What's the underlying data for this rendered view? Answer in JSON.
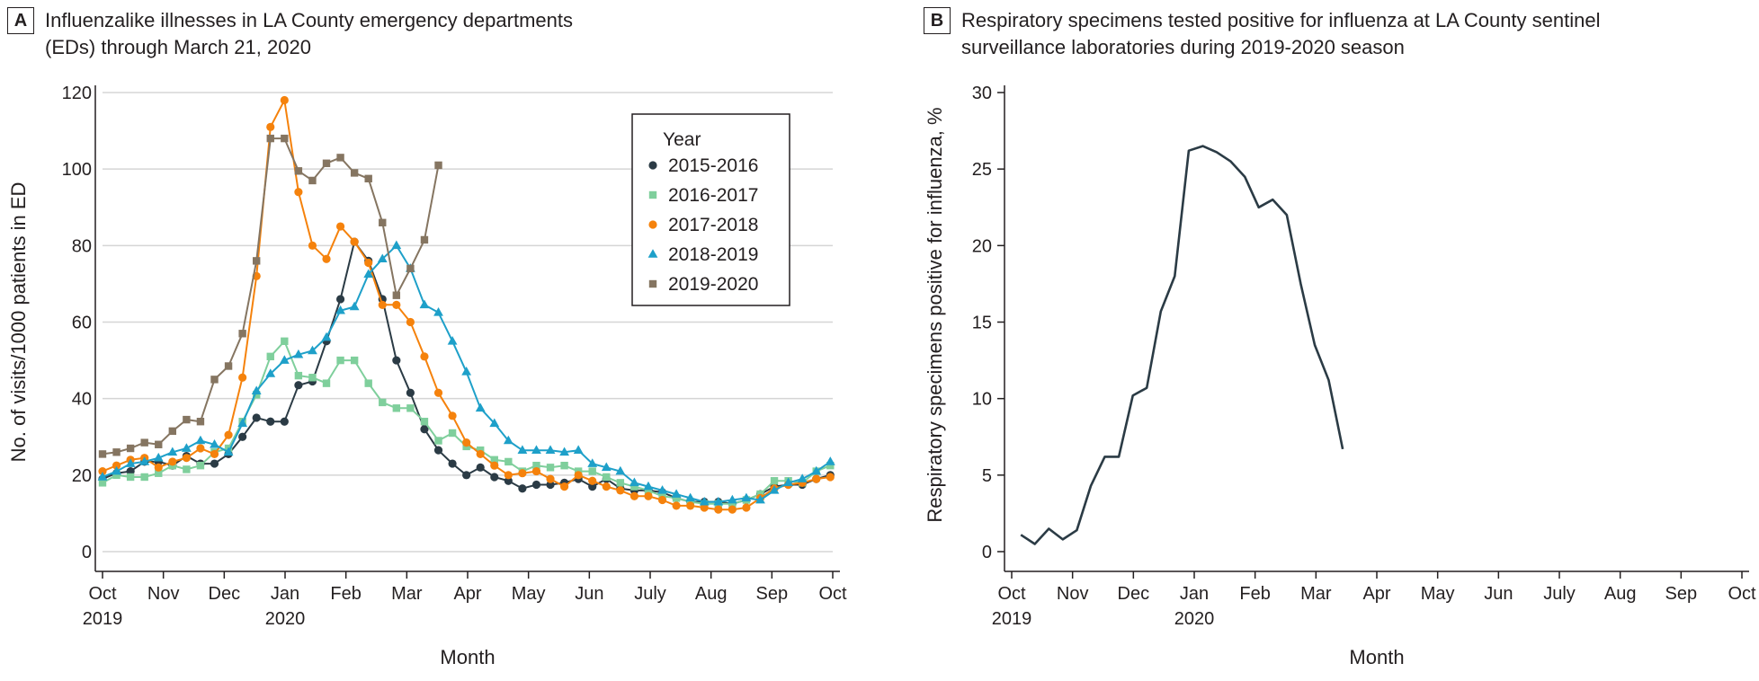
{
  "colors": {
    "2015-2016": "#2b3b45",
    "2016-2017": "#7fcf9c",
    "2017-2018": "#f5820c",
    "2018-2019": "#1ea0c9",
    "2019-2020": "#857561",
    "panelB_line": "#2b3b45",
    "grid": "#d5d5d5",
    "axis": "#231f20"
  },
  "panels": [
    {
      "letter": "A",
      "title_lines": [
        "Influenzalike illnesses in LA County emergency departments",
        "(EDs) through March 21, 2020"
      ]
    },
    {
      "letter": "B",
      "title_lines": [
        "Respiratory specimens tested positive for influenza at LA County sentinel",
        "surveillance laboratories during 2019-2020 season"
      ]
    }
  ],
  "chart_data": [
    {
      "type": "line",
      "title": "Influenzalike illnesses in LA County emergency departments (EDs) through March 21, 2020",
      "xlabel": "Month",
      "ylabel": "No. of visits/1000 patients in ED",
      "ylim": [
        0,
        120
      ],
      "yticks": [
        "0",
        "20",
        "40",
        "60",
        "80",
        "100",
        "120"
      ],
      "xticks": [
        "Oct",
        "Nov",
        "Dec",
        "Jan",
        "Feb",
        "Mar",
        "Apr",
        "May",
        "Jun",
        "July",
        "Aug",
        "Sep",
        "Oct"
      ],
      "xtick_years": {
        "0": "2019",
        "3": "2020"
      },
      "x_unit": "month index (0 = Oct 2019, 12 = Oct 2020)",
      "grid": "horizontal",
      "legend_title": "Year",
      "legend_position": "top-right",
      "series": [
        {
          "name": "2015-2016",
          "marker": "circle",
          "x": [
            0,
            0.23,
            0.46,
            0.69,
            0.92,
            1.15,
            1.38,
            1.61,
            1.84,
            2.07,
            2.3,
            2.53,
            2.76,
            2.99,
            3.22,
            3.45,
            3.68,
            3.91,
            4.14,
            4.37,
            4.6,
            4.83,
            5.06,
            5.29,
            5.52,
            5.75,
            5.98,
            6.21,
            6.44,
            6.67,
            6.9,
            7.13,
            7.36,
            7.59,
            7.82,
            8.05,
            8.28,
            8.51,
            8.74,
            8.97,
            9.2,
            9.43,
            9.66,
            9.89,
            10.12,
            10.35,
            10.58,
            10.81,
            11.04,
            11.27,
            11.5,
            11.73,
            11.96
          ],
          "y": [
            19,
            20.5,
            21,
            23.5,
            23.5,
            22.5,
            25,
            23,
            23,
            25.5,
            30,
            35,
            34,
            34,
            43.5,
            44.5,
            55,
            66,
            81,
            76,
            66,
            50,
            41.5,
            32,
            26.5,
            23,
            20,
            22,
            19.5,
            18.5,
            16.5,
            17.5,
            17.5,
            18,
            19,
            17,
            19,
            16.5,
            16,
            16,
            15.5,
            14,
            13,
            13,
            13,
            12.5,
            13.5,
            15,
            17,
            17.5,
            17.5,
            19,
            20
          ]
        },
        {
          "name": "2016-2017",
          "marker": "square",
          "x": [
            0,
            0.23,
            0.46,
            0.69,
            0.92,
            1.15,
            1.38,
            1.61,
            1.84,
            2.07,
            2.3,
            2.53,
            2.76,
            2.99,
            3.22,
            3.45,
            3.68,
            3.91,
            4.14,
            4.37,
            4.6,
            4.83,
            5.06,
            5.29,
            5.52,
            5.75,
            5.98,
            6.21,
            6.44,
            6.67,
            6.9,
            7.13,
            7.36,
            7.59,
            7.82,
            8.05,
            8.28,
            8.51,
            8.74,
            8.97,
            9.2,
            9.43,
            9.66,
            9.89,
            10.12,
            10.35,
            10.58,
            10.81,
            11.04,
            11.27,
            11.5,
            11.73,
            11.96
          ],
          "y": [
            18,
            20,
            19.5,
            19.5,
            20.5,
            22.5,
            21.5,
            22.5,
            26,
            27,
            34,
            41,
            51,
            55,
            46,
            45.5,
            44,
            50,
            50,
            44,
            39,
            37.5,
            37.5,
            34,
            29,
            31,
            27.5,
            26.5,
            24,
            23.5,
            21,
            22.5,
            22,
            22.5,
            21,
            21,
            19.5,
            18,
            17,
            16,
            14.5,
            14,
            13,
            12.5,
            12.5,
            12.5,
            13.5,
            15,
            18.5,
            18.5,
            18,
            21,
            22.5
          ]
        },
        {
          "name": "2017-2018",
          "marker": "circle",
          "x": [
            0,
            0.23,
            0.46,
            0.69,
            0.92,
            1.15,
            1.38,
            1.61,
            1.84,
            2.07,
            2.3,
            2.53,
            2.76,
            2.99,
            3.22,
            3.45,
            3.68,
            3.91,
            4.14,
            4.37,
            4.6,
            4.83,
            5.06,
            5.29,
            5.52,
            5.75,
            5.98,
            6.21,
            6.44,
            6.67,
            6.9,
            7.13,
            7.36,
            7.59,
            7.82,
            8.05,
            8.28,
            8.51,
            8.74,
            8.97,
            9.2,
            9.43,
            9.66,
            9.89,
            10.12,
            10.35,
            10.58,
            10.81,
            11.04,
            11.27,
            11.5,
            11.73,
            11.96
          ],
          "y": [
            21,
            22.5,
            24,
            24.5,
            22,
            23.5,
            24.5,
            27,
            25.5,
            30.5,
            45.5,
            72,
            111,
            118,
            94,
            80,
            76.5,
            85,
            81,
            75.5,
            64.5,
            64.5,
            60,
            51,
            41.5,
            35.5,
            28.5,
            25.5,
            22.5,
            20,
            20.5,
            21,
            19,
            17,
            20,
            18.5,
            17,
            16,
            14.5,
            14.5,
            13.5,
            12,
            12,
            11.5,
            11,
            11,
            11.5,
            14,
            16.5,
            17.5,
            18,
            19,
            19.5
          ]
        },
        {
          "name": "2018-2019",
          "marker": "triangle",
          "x": [
            0,
            0.23,
            0.46,
            0.69,
            0.92,
            1.15,
            1.38,
            1.61,
            1.84,
            2.07,
            2.3,
            2.53,
            2.76,
            2.99,
            3.22,
            3.45,
            3.68,
            3.91,
            4.14,
            4.37,
            4.6,
            4.83,
            5.06,
            5.29,
            5.52,
            5.75,
            5.98,
            6.21,
            6.44,
            6.67,
            6.9,
            7.13,
            7.36,
            7.59,
            7.82,
            8.05,
            8.28,
            8.51,
            8.74,
            8.97,
            9.2,
            9.43,
            9.66,
            9.89,
            10.12,
            10.35,
            10.58,
            10.81,
            11.04,
            11.27,
            11.5,
            11.73,
            11.96
          ],
          "y": [
            19.5,
            21,
            23,
            23.5,
            24.5,
            26,
            27,
            29,
            28,
            26,
            33.5,
            42,
            46.5,
            50,
            51.5,
            52.5,
            56,
            63,
            64,
            72.5,
            76.5,
            80,
            74,
            64.5,
            62.5,
            55,
            47,
            37.5,
            33.5,
            29,
            26.5,
            26.5,
            26.5,
            26,
            26.5,
            23,
            22,
            21,
            18,
            17,
            16,
            15,
            14,
            13,
            13,
            13.5,
            14,
            13.5,
            16,
            18,
            19,
            21,
            23.5
          ]
        },
        {
          "name": "2019-2020",
          "marker": "square",
          "x": [
            0,
            0.23,
            0.46,
            0.69,
            0.92,
            1.15,
            1.38,
            1.61,
            1.84,
            2.07,
            2.3,
            2.53,
            2.76,
            2.99,
            3.22,
            3.45,
            3.68,
            3.91,
            4.14,
            4.37,
            4.6,
            4.83,
            5.06,
            5.29,
            5.52
          ],
          "y": [
            25.5,
            26,
            27,
            28.5,
            28,
            31.5,
            34.5,
            34,
            45,
            48.5,
            57,
            76,
            108,
            108,
            99.5,
            97,
            101.5,
            103,
            99,
            97.5,
            86,
            67,
            74,
            81.5,
            101
          ]
        }
      ]
    },
    {
      "type": "line",
      "title": "Respiratory specimens tested positive for influenza at LA County sentinel surveillance laboratories during 2019-2020 season",
      "xlabel": "Month",
      "ylabel": "Respiratory specimens positive for influenza, %",
      "ylim": [
        0,
        30
      ],
      "yticks": [
        "0",
        "5",
        "10",
        "15",
        "20",
        "25",
        "30"
      ],
      "xticks": [
        "Oct",
        "Nov",
        "Dec",
        "Jan",
        "Feb",
        "Mar",
        "Apr",
        "May",
        "Jun",
        "July",
        "Aug",
        "Sep",
        "Oct"
      ],
      "xtick_years": {
        "0": "2019",
        "3": "2020"
      },
      "x_unit": "month index (0 = Oct 2019, 12 = Oct 2020)",
      "grid": "none",
      "series": [
        {
          "x": [
            0.15,
            0.38,
            0.61,
            0.84,
            1.07,
            1.3,
            1.53,
            1.76,
            1.99,
            2.22,
            2.45,
            2.68,
            2.91,
            3.14,
            3.37,
            3.6,
            3.83,
            4.06,
            4.29,
            4.52,
            4.75,
            4.98,
            5.21,
            5.44
          ],
          "y": [
            1.1,
            0.5,
            1.5,
            0.8,
            1.4,
            4.3,
            6.2,
            6.2,
            10.2,
            10.7,
            15.7,
            18,
            26.2,
            26.5,
            26.1,
            25.5,
            24.5,
            22.5,
            23,
            22,
            17.5,
            13.5,
            11.2,
            6.7
          ]
        }
      ]
    }
  ]
}
